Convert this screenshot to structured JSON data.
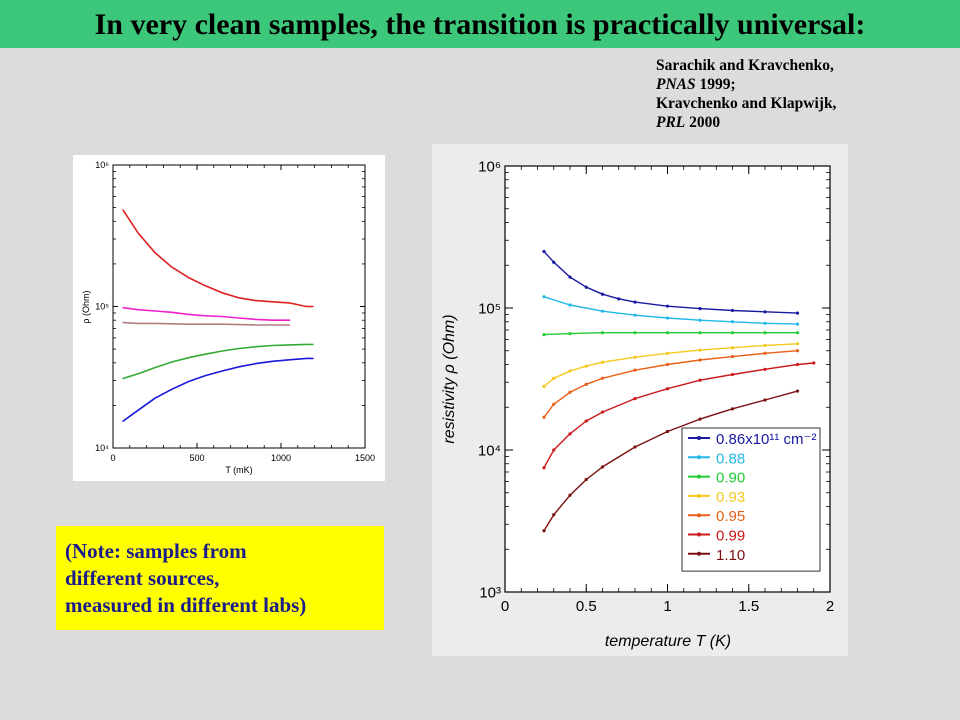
{
  "slide": {
    "title": "In very clean samples, the transition is practically universal:",
    "citation": {
      "line1": "Sarachik and Kravchenko,",
      "line2_journal": "PNAS",
      "line2_rest": " 1999;",
      "line3": "Kravchenko and Klapwijk,",
      "line4_journal": "PRL",
      "line4_rest": " 2000"
    },
    "note_lines": [
      "(Note: samples from",
      "different sources,",
      "measured in different labs)"
    ],
    "colors": {
      "title_bar": "#3cc77a",
      "background": "#dcdcdc",
      "note_bg": "#ffff00",
      "note_text": "#1c1c8a"
    }
  },
  "chart_data": [
    {
      "type": "line",
      "title": "",
      "xlabel": "T (mK)",
      "ylabel": "ρ (Ohm)",
      "xlim": [
        0,
        1500
      ],
      "ylim": [
        10000,
        1000000
      ],
      "yscale": "log",
      "x_ticks": [
        0,
        500,
        1000,
        1500
      ],
      "y_ticks": [
        {
          "value": 10000,
          "label": "10⁴"
        },
        {
          "value": 100000,
          "label": "10⁵"
        },
        {
          "value": 1000000,
          "label": "10⁶"
        }
      ],
      "grid": false,
      "legend": "none",
      "series": [
        {
          "color": "#dd2020",
          "x": [
            60,
            150,
            250,
            350,
            450,
            550,
            650,
            750,
            850,
            950,
            1050,
            1150,
            1190
          ],
          "y": [
            480000,
            330000,
            240000,
            190000,
            160000,
            140000,
            125000,
            115000,
            110000,
            108000,
            106000,
            100000,
            100000
          ]
        },
        {
          "color": "#ee22cc",
          "x": [
            60,
            150,
            250,
            350,
            450,
            550,
            650,
            750,
            850,
            950,
            1050
          ],
          "y": [
            98000,
            95000,
            93000,
            91000,
            88000,
            86000,
            85000,
            83000,
            81000,
            80000,
            80000
          ]
        },
        {
          "color": "#b08080",
          "x": [
            60,
            150,
            250,
            350,
            450,
            550,
            650,
            750,
            850,
            950,
            1050
          ],
          "y": [
            77000,
            76000,
            76000,
            75500,
            75000,
            75000,
            75000,
            74500,
            74000,
            74000,
            74000
          ]
        },
        {
          "color": "#33aa33",
          "x": [
            60,
            150,
            250,
            350,
            450,
            550,
            650,
            750,
            850,
            950,
            1050,
            1150,
            1190
          ],
          "y": [
            31000,
            33500,
            37000,
            40500,
            43500,
            46000,
            48500,
            50500,
            52000,
            53000,
            53500,
            54000,
            54000
          ]
        },
        {
          "color": "#1818dd",
          "x": [
            60,
            150,
            250,
            350,
            450,
            550,
            650,
            750,
            850,
            950,
            1050,
            1150,
            1190
          ],
          "y": [
            15500,
            18500,
            22500,
            26000,
            29500,
            32500,
            35000,
            37500,
            39500,
            41000,
            42000,
            43000,
            43000
          ]
        }
      ]
    },
    {
      "type": "line",
      "title": "",
      "xlabel": "temperature T (K)",
      "ylabel": "resistivity ρ (Ohm)",
      "xlim": [
        0,
        2
      ],
      "ylim": [
        1000,
        1000000
      ],
      "yscale": "log",
      "x_ticks": [
        0,
        0.5,
        1,
        1.5,
        2
      ],
      "y_ticks": [
        {
          "value": 1000,
          "label": "10³"
        },
        {
          "value": 10000,
          "label": "10⁴"
        },
        {
          "value": 100000,
          "label": "10⁵"
        },
        {
          "value": 1000000,
          "label": "10⁶"
        }
      ],
      "grid": false,
      "legend": "bottom-right",
      "series": [
        {
          "name": "0.86x10¹¹ cm⁻²",
          "color": "#1a1aa0",
          "x": [
            0.24,
            0.3,
            0.4,
            0.5,
            0.6,
            0.7,
            0.8,
            1.0,
            1.2,
            1.4,
            1.6,
            1.8
          ],
          "y": [
            250000,
            210000,
            165000,
            140000,
            125000,
            116000,
            110000,
            103000,
            99000,
            96000,
            94000,
            92000
          ]
        },
        {
          "name": "0.88",
          "color": "#22b8e8",
          "x": [
            0.24,
            0.4,
            0.6,
            0.8,
            1.0,
            1.2,
            1.4,
            1.6,
            1.8
          ],
          "y": [
            120000,
            105000,
            95000,
            89000,
            85000,
            82000,
            80000,
            78000,
            77000
          ]
        },
        {
          "name": "0.90",
          "color": "#22cc33",
          "x": [
            0.24,
            0.4,
            0.6,
            0.8,
            1.0,
            1.2,
            1.4,
            1.6,
            1.8
          ],
          "y": [
            65000,
            66000,
            67000,
            67000,
            67000,
            67000,
            67000,
            67000,
            67000
          ]
        },
        {
          "name": "0.93",
          "color": "#f2c81c",
          "x": [
            0.24,
            0.3,
            0.4,
            0.5,
            0.6,
            0.8,
            1.0,
            1.2,
            1.4,
            1.6,
            1.8
          ],
          "y": [
            28000,
            32000,
            36000,
            39000,
            41500,
            45000,
            48000,
            50500,
            52500,
            54500,
            56000
          ]
        },
        {
          "name": "0.95",
          "color": "#e86018",
          "x": [
            0.24,
            0.3,
            0.4,
            0.5,
            0.6,
            0.8,
            1.0,
            1.2,
            1.4,
            1.6,
            1.8
          ],
          "y": [
            17000,
            21000,
            25500,
            29000,
            32000,
            36500,
            40000,
            43000,
            45500,
            48000,
            50000
          ]
        },
        {
          "name": "0.99",
          "color": "#cc1818",
          "x": [
            0.24,
            0.3,
            0.4,
            0.5,
            0.6,
            0.8,
            1.0,
            1.2,
            1.4,
            1.6,
            1.8,
            1.9
          ],
          "y": [
            7500,
            10000,
            13000,
            16000,
            18500,
            23000,
            27000,
            31000,
            34000,
            37000,
            40000,
            41000
          ]
        },
        {
          "name": "1.10",
          "color": "#7a1010",
          "x": [
            0.24,
            0.3,
            0.4,
            0.5,
            0.6,
            0.8,
            1.0,
            1.2,
            1.4,
            1.6,
            1.8
          ],
          "y": [
            2700,
            3500,
            4800,
            6200,
            7600,
            10500,
            13500,
            16500,
            19500,
            22500,
            26000
          ]
        }
      ]
    }
  ]
}
